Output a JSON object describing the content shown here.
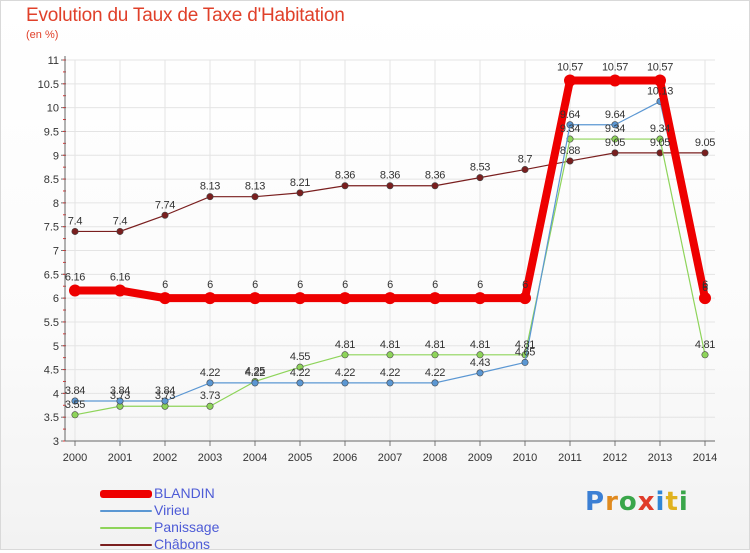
{
  "title": "Evolution du Taux de Taxe d'Habitation",
  "subtitle": "(en %)",
  "logo": {
    "text": "Proxiti",
    "letter_colors": [
      "#3b7fd4",
      "#e08a1e",
      "#3aa64a",
      "#e03c2a",
      "#2f86d6",
      "#e0b21e",
      "#3aa64a"
    ]
  },
  "chart_data": {
    "type": "line",
    "title": "Evolution du Taux de Taxe d'Habitation",
    "ylabel": "(en %)",
    "xlabel": "",
    "x": [
      "2000",
      "2001",
      "2002",
      "2003",
      "2004",
      "2005",
      "2006",
      "2007",
      "2008",
      "2009",
      "2010",
      "2011",
      "2012",
      "2013",
      "2014"
    ],
    "ylim": [
      3,
      11
    ],
    "yticks": [
      3,
      3.5,
      4,
      4.5,
      5,
      5.5,
      6,
      6.5,
      7,
      7.5,
      8,
      8.5,
      9,
      9.5,
      10,
      10.5,
      11
    ],
    "ytick_labels": [
      "3",
      "3.5",
      "4",
      "4.5",
      "5",
      "5.5",
      "6",
      "6.5",
      "7",
      "7.5",
      "8",
      "8.5",
      "9",
      "9.5",
      "10",
      "10.5",
      "11"
    ],
    "grid": true,
    "legend_position": "bottom-left",
    "series": [
      {
        "name": "Châbons",
        "color": "#7a1f1f",
        "width": 1.2,
        "values": [
          7.4,
          7.4,
          7.74,
          8.13,
          8.13,
          8.21,
          8.36,
          8.36,
          8.36,
          8.53,
          8.7,
          8.88,
          9.05,
          9.05,
          9.05
        ],
        "labels": [
          "7.4",
          "7.4",
          "7.74",
          "8.13",
          "8.13",
          "8.21",
          "8.36",
          "8.36",
          "8.36",
          "8.53",
          "8.7",
          "8.88",
          "9.05",
          "9.05",
          "9.05"
        ]
      },
      {
        "name": "Panissage",
        "color": "#8ed45a",
        "width": 1.2,
        "values": [
          3.55,
          3.73,
          3.73,
          3.73,
          4.25,
          4.55,
          4.81,
          4.81,
          4.81,
          4.81,
          4.81,
          9.34,
          9.34,
          9.34,
          4.81
        ],
        "labels": [
          "3.55",
          "3.73",
          "3.73",
          "3.73",
          "4.25",
          "4.55",
          "4.81",
          "4.81",
          "4.81",
          "4.81",
          "4.81",
          "9.34",
          "9.34",
          "9.34",
          "4.81"
        ]
      },
      {
        "name": "Virieu",
        "color": "#5b97d3",
        "width": 1.2,
        "values": [
          3.84,
          3.84,
          3.84,
          4.22,
          4.22,
          4.22,
          4.22,
          4.22,
          4.22,
          4.43,
          4.65,
          9.64,
          9.64,
          10.13,
          6
        ],
        "labels": [
          "3.84",
          "3.84",
          "3.84",
          "4.22",
          "4.22",
          "4.22",
          "4.22",
          "4.22",
          "4.22",
          "4.43",
          "4.65",
          "9.64",
          "9.64",
          "10.13",
          "6"
        ]
      },
      {
        "name": "BLANDIN",
        "color": "#ee0000",
        "width": 8,
        "values": [
          6.16,
          6.16,
          6,
          6,
          6,
          6,
          6,
          6,
          6,
          6,
          6,
          10.57,
          10.57,
          10.57,
          6
        ],
        "labels": [
          "6.16",
          "6.16",
          "6",
          "6",
          "6",
          "6",
          "6",
          "6",
          "6",
          "6",
          "6",
          "10.57",
          "10.57",
          "10.57",
          "6"
        ]
      }
    ],
    "legend": [
      {
        "name": "BLANDIN",
        "color": "#ee0000",
        "width": 8
      },
      {
        "name": "Virieu",
        "color": "#5b97d3",
        "width": 2
      },
      {
        "name": "Panissage",
        "color": "#8ed45a",
        "width": 2
      },
      {
        "name": "Châbons",
        "color": "#7a1f1f",
        "width": 2
      }
    ]
  }
}
